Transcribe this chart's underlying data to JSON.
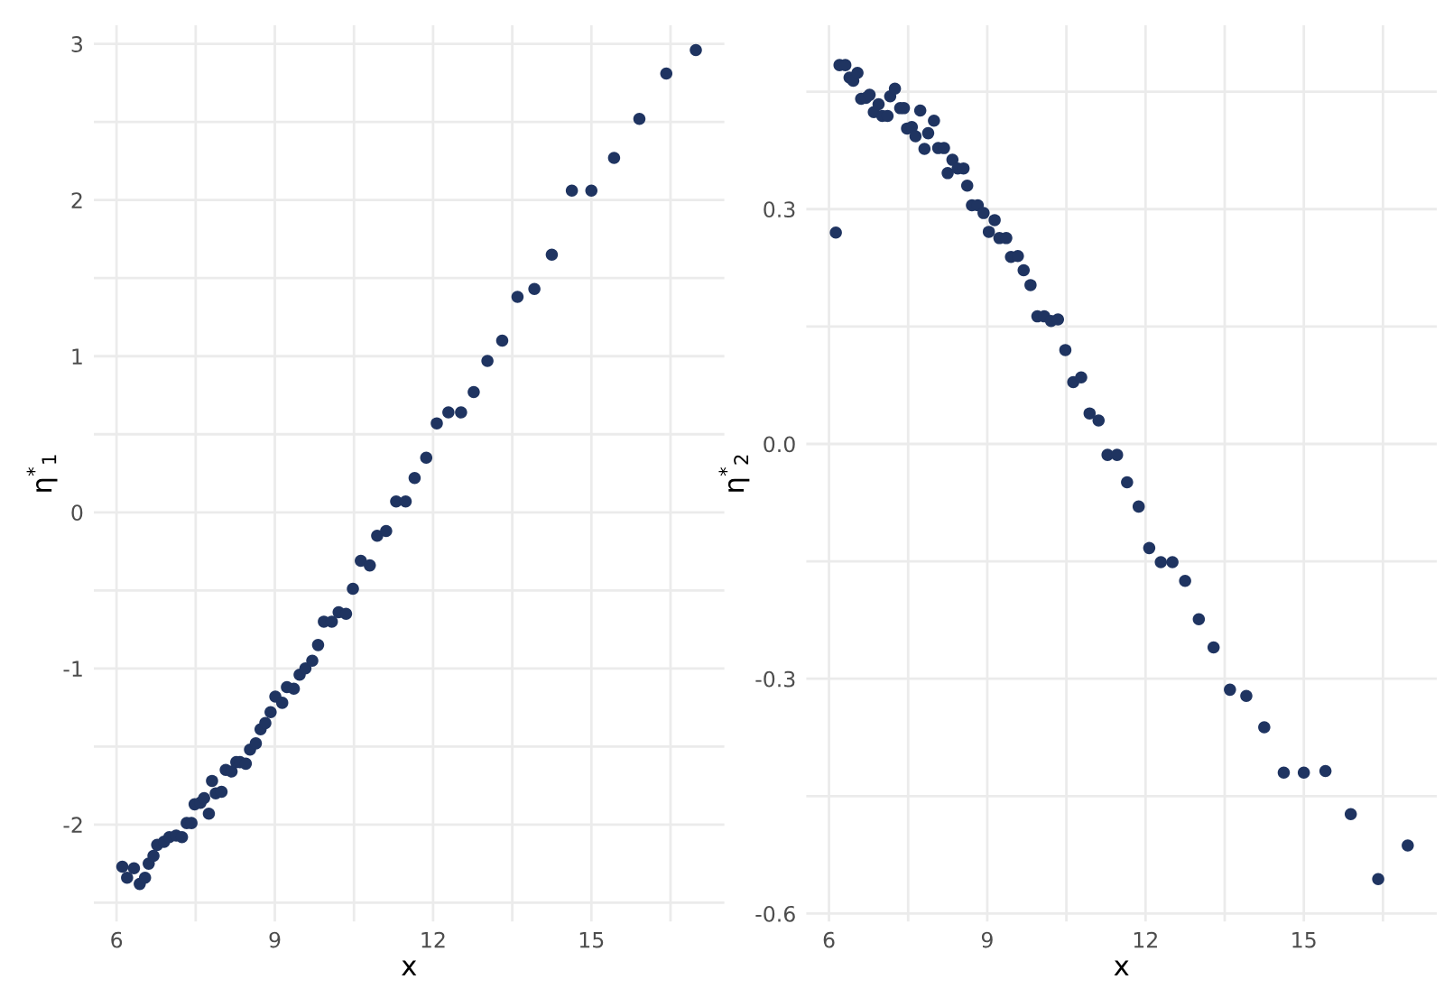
{
  "chart_data": [
    {
      "type": "scatter",
      "xlabel": "x",
      "ylabel": "η$^{*}$$_{1}$",
      "color": "#1f3461",
      "marker": "circle",
      "grid": true,
      "xlim": [
        5.57,
        17.52
      ],
      "ylim": [
        -2.62,
        3.12
      ],
      "xticks": [
        6,
        {
          "value": 7.5,
          "label": null
        },
        9,
        {
          "value": 10.5,
          "label": null
        },
        12,
        {
          "value": 13.5,
          "label": null
        },
        15,
        {
          "value": 16.5,
          "label": null
        }
      ],
      "yticks": [
        {
          "value": -2.5,
          "label": null
        },
        -2,
        {
          "value": -1.5,
          "label": null
        },
        -1,
        {
          "value": -0.5,
          "label": null
        },
        0,
        {
          "value": 0.5,
          "label": null
        },
        1,
        {
          "value": 1.5,
          "label": null
        },
        2,
        {
          "value": 2.5,
          "label": null
        },
        3
      ],
      "x": [
        6.11,
        6.2,
        6.33,
        6.44,
        6.54,
        6.61,
        6.7,
        6.77,
        6.9,
        7.0,
        7.13,
        7.24,
        7.33,
        7.42,
        7.48,
        7.59,
        7.66,
        7.75,
        7.81,
        7.88,
        7.99,
        8.07,
        8.18,
        8.27,
        8.34,
        8.45,
        8.53,
        8.64,
        8.73,
        8.82,
        8.92,
        9.01,
        9.14,
        9.23,
        9.36,
        9.47,
        9.58,
        9.71,
        9.82,
        9.93,
        10.08,
        10.21,
        10.35,
        10.48,
        10.63,
        10.8,
        10.94,
        11.11,
        11.3,
        11.48,
        11.65,
        11.87,
        12.07,
        12.29,
        12.53,
        12.77,
        13.03,
        13.31,
        13.6,
        13.92,
        14.25,
        14.63,
        15.0,
        15.43,
        15.91,
        16.42,
        16.98
      ],
      "values": [
        -2.27,
        -2.34,
        -2.28,
        -2.38,
        -2.34,
        -2.25,
        -2.2,
        -2.13,
        -2.11,
        -2.08,
        -2.07,
        -2.08,
        -1.99,
        -1.99,
        -1.87,
        -1.86,
        -1.83,
        -1.93,
        -1.72,
        -1.8,
        -1.79,
        -1.65,
        -1.66,
        -1.6,
        -1.6,
        -1.61,
        -1.52,
        -1.48,
        -1.39,
        -1.35,
        -1.28,
        -1.18,
        -1.22,
        -1.12,
        -1.13,
        -1.04,
        -1.0,
        -0.95,
        -0.85,
        -0.7,
        -0.7,
        -0.64,
        -0.65,
        -0.49,
        -0.31,
        -0.34,
        -0.15,
        -0.12,
        0.07,
        0.07,
        0.22,
        0.35,
        0.57,
        0.64,
        0.64,
        0.77,
        0.97,
        1.1,
        1.38,
        1.43,
        1.65,
        2.06,
        2.06,
        2.27,
        2.52,
        2.81,
        2.96
      ]
    },
    {
      "type": "scatter",
      "xlabel": "x",
      "ylabel": "η$^{*}$$_{2}$",
      "color": "#1f3461",
      "marker": "circle",
      "grid": true,
      "xlim": [
        5.57,
        17.52
      ],
      "ylim": [
        -0.61,
        0.535
      ],
      "xticks": [
        6,
        {
          "value": 7.5,
          "label": null
        },
        9,
        {
          "value": 10.5,
          "label": null
        },
        12,
        {
          "value": 13.5,
          "label": null
        },
        15,
        {
          "value": 16.5,
          "label": null
        }
      ],
      "yticks": [
        -0.6,
        {
          "value": -0.45,
          "label": null
        },
        -0.3,
        {
          "value": -0.15,
          "label": null
        },
        {
          "value": 0,
          "label": "0.0"
        },
        {
          "value": 0.15,
          "label": null
        },
        0.3,
        {
          "value": 0.45,
          "label": null
        }
      ],
      "x": [
        6.13,
        6.2,
        6.31,
        6.39,
        6.46,
        6.54,
        6.61,
        6.7,
        6.77,
        6.85,
        6.94,
        7.01,
        7.11,
        7.16,
        7.25,
        7.35,
        7.42,
        7.48,
        7.57,
        7.64,
        7.73,
        7.81,
        7.88,
        7.99,
        8.07,
        8.18,
        8.25,
        8.34,
        8.44,
        8.55,
        8.62,
        8.71,
        8.82,
        8.93,
        9.03,
        9.14,
        9.23,
        9.36,
        9.45,
        9.58,
        9.69,
        9.82,
        9.95,
        10.08,
        10.21,
        10.34,
        10.48,
        10.63,
        10.78,
        10.94,
        11.11,
        11.28,
        11.46,
        11.65,
        11.87,
        12.07,
        12.29,
        12.51,
        12.75,
        13.01,
        13.29,
        13.6,
        13.91,
        14.25,
        14.62,
        15.0,
        15.41,
        15.89,
        16.41,
        16.97
      ],
      "values": [
        0.27,
        0.484,
        0.484,
        0.468,
        0.464,
        0.474,
        0.441,
        0.442,
        0.446,
        0.424,
        0.434,
        0.419,
        0.419,
        0.444,
        0.454,
        0.429,
        0.429,
        0.403,
        0.405,
        0.393,
        0.426,
        0.377,
        0.397,
        0.413,
        0.378,
        0.378,
        0.346,
        0.363,
        0.352,
        0.352,
        0.33,
        0.305,
        0.305,
        0.295,
        0.271,
        0.286,
        0.263,
        0.263,
        0.239,
        0.24,
        0.222,
        0.203,
        0.163,
        0.163,
        0.157,
        0.159,
        0.12,
        0.079,
        0.085,
        0.039,
        0.03,
        -0.014,
        -0.014,
        -0.049,
        -0.08,
        -0.133,
        -0.151,
        -0.151,
        -0.175,
        -0.224,
        -0.26,
        -0.314,
        -0.322,
        -0.362,
        -0.42,
        -0.42,
        -0.418,
        -0.473,
        -0.556,
        -0.513
      ]
    }
  ]
}
